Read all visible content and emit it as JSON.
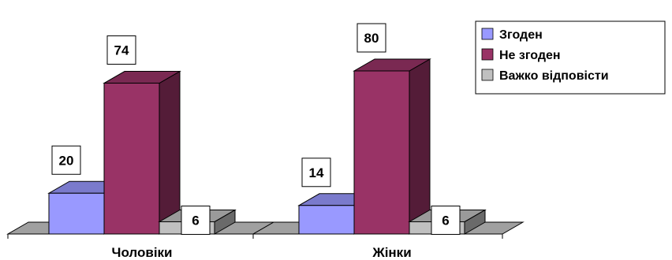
{
  "chart_data": {
    "type": "bar",
    "categories": [
      "Чоловіки",
      "Жінки"
    ],
    "series": [
      {
        "name": "Згоден",
        "values": [
          20,
          14
        ],
        "color": "#9999FF"
      },
      {
        "name": "Не згоден",
        "values": [
          74,
          80
        ],
        "color": "#993366"
      },
      {
        "name": "Важко відповісти",
        "values": [
          6,
          6
        ],
        "color": "#C0C0C0"
      }
    ],
    "ylim": [
      0,
      80
    ],
    "grid": false,
    "legend_position": "top-right",
    "style": "3d-clustered-column"
  }
}
